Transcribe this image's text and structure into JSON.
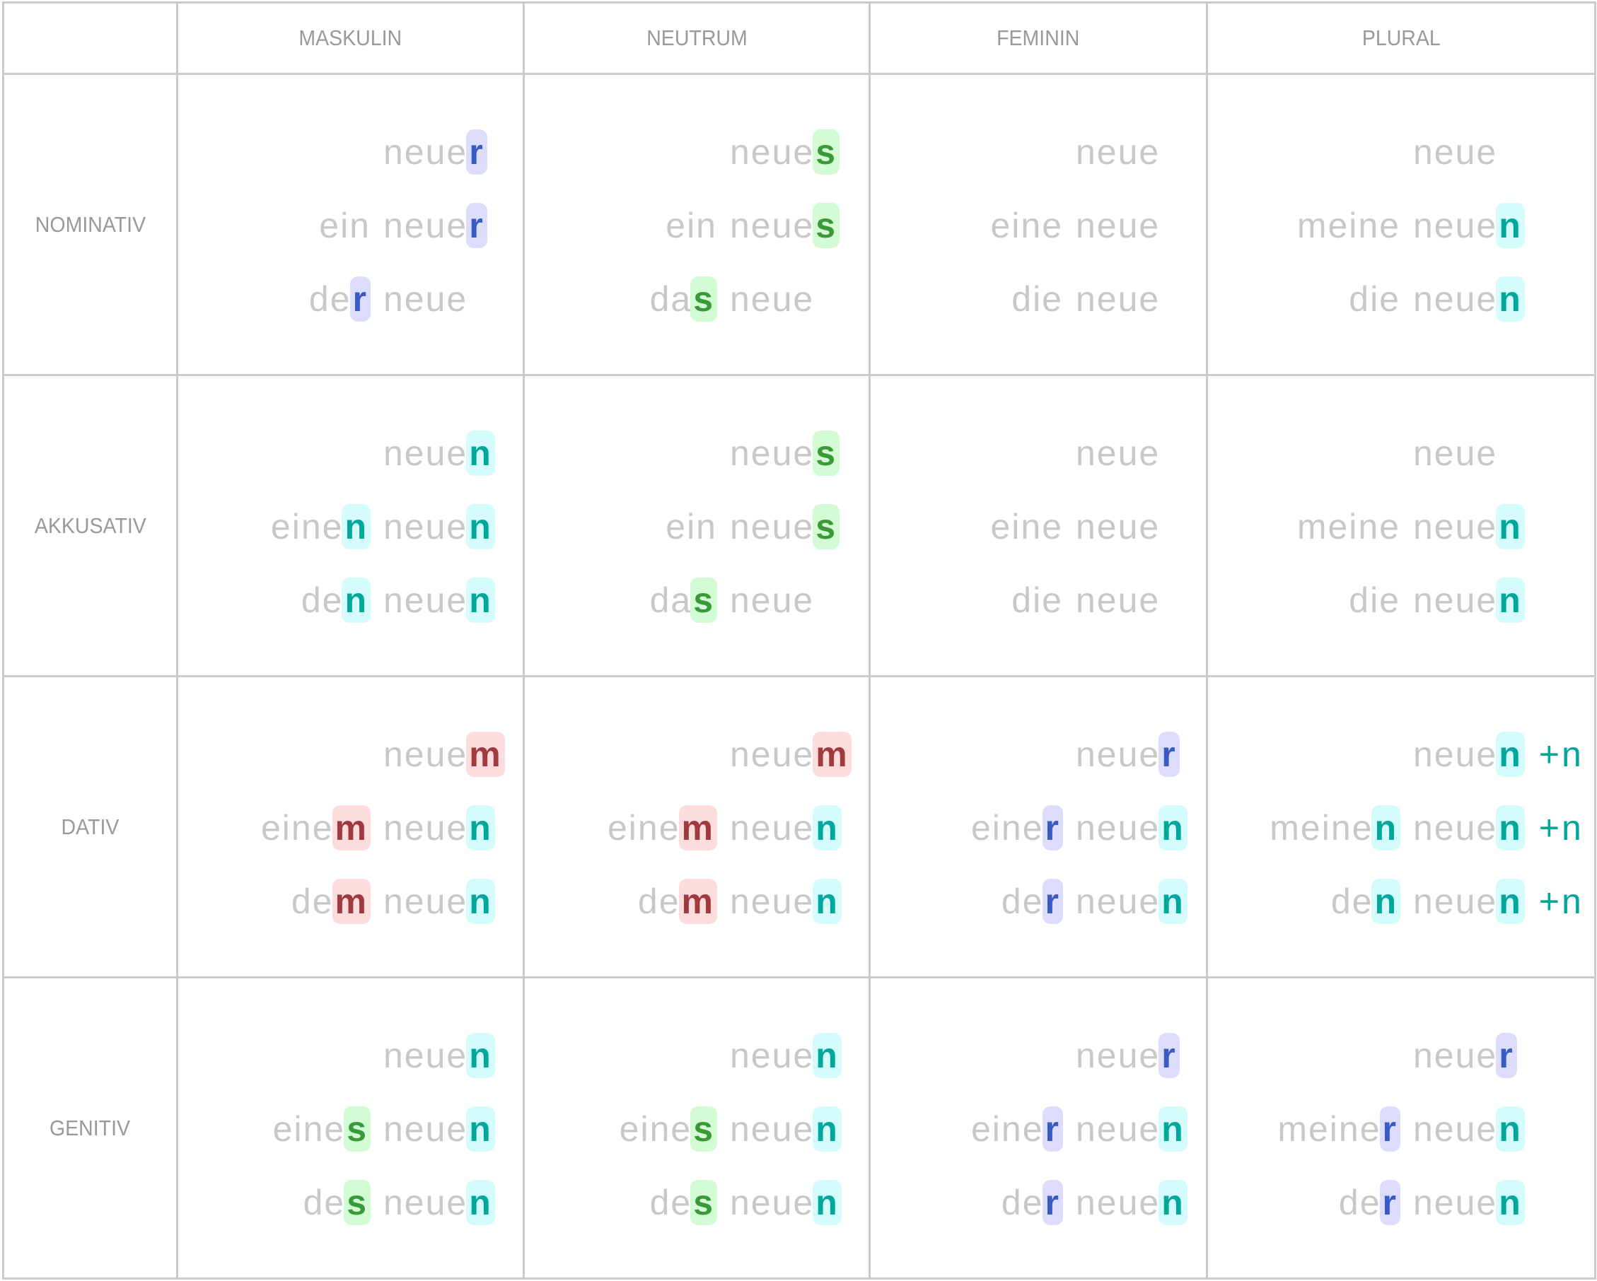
{
  "colors": {
    "r": {
      "fg": "#3b5bc4",
      "bg": "#dcdcfc"
    },
    "s": {
      "fg": "#3a9a3a",
      "bg": "#d4fcd4"
    },
    "n": {
      "fg": "#00a89c",
      "bg": "#d4fcfc"
    },
    "m": {
      "fg": "#a03a40",
      "bg": "#fcdcdc"
    },
    "text": "#c8c8c8",
    "grid": "#cbcbcb"
  },
  "headers": [
    "MASKULIN",
    "NEUTRUM",
    "FEMININ",
    "PLURAL"
  ],
  "rows": [
    {
      "label": "NOMINATIV",
      "cells": [
        {
          "lines": [
            [
              "",
              "",
              "neue",
              "r",
              ""
            ],
            [
              "ein",
              "",
              "neue",
              "r",
              ""
            ],
            [
              "de",
              "r",
              "neue",
              "",
              ""
            ]
          ]
        },
        {
          "lines": [
            [
              "",
              "",
              "neue",
              "s",
              ""
            ],
            [
              "ein",
              "",
              "neue",
              "s",
              ""
            ],
            [
              "da",
              "s",
              "neue",
              "",
              ""
            ]
          ]
        },
        {
          "lines": [
            [
              "",
              "",
              "neue",
              "",
              ""
            ],
            [
              "eine",
              "",
              "neue",
              "",
              ""
            ],
            [
              "die",
              "",
              "neue",
              "",
              ""
            ]
          ]
        },
        {
          "lines": [
            [
              "",
              "",
              "neue",
              "",
              ""
            ],
            [
              "meine",
              "",
              "neue",
              "n",
              ""
            ],
            [
              "die",
              "",
              "neue",
              "n",
              ""
            ]
          ]
        }
      ]
    },
    {
      "label": "AKKUSATIV",
      "cells": [
        {
          "lines": [
            [
              "",
              "",
              "neue",
              "n",
              ""
            ],
            [
              "eine",
              "n",
              "neue",
              "n",
              ""
            ],
            [
              "de",
              "n",
              "neue",
              "n",
              ""
            ]
          ]
        },
        {
          "lines": [
            [
              "",
              "",
              "neue",
              "s",
              ""
            ],
            [
              "ein",
              "",
              "neue",
              "s",
              ""
            ],
            [
              "da",
              "s",
              "neue",
              "",
              ""
            ]
          ]
        },
        {
          "lines": [
            [
              "",
              "",
              "neue",
              "",
              ""
            ],
            [
              "eine",
              "",
              "neue",
              "",
              ""
            ],
            [
              "die",
              "",
              "neue",
              "",
              ""
            ]
          ]
        },
        {
          "lines": [
            [
              "",
              "",
              "neue",
              "",
              ""
            ],
            [
              "meine",
              "",
              "neue",
              "n",
              ""
            ],
            [
              "die",
              "",
              "neue",
              "n",
              ""
            ]
          ]
        }
      ]
    },
    {
      "label": "DATIV",
      "cells": [
        {
          "lines": [
            [
              "",
              "",
              "neue",
              "m",
              ""
            ],
            [
              "eine",
              "m",
              "neue",
              "n",
              ""
            ],
            [
              "de",
              "m",
              "neue",
              "n",
              ""
            ]
          ]
        },
        {
          "lines": [
            [
              "",
              "",
              "neue",
              "m",
              ""
            ],
            [
              "eine",
              "m",
              "neue",
              "n",
              ""
            ],
            [
              "de",
              "m",
              "neue",
              "n",
              ""
            ]
          ]
        },
        {
          "lines": [
            [
              "",
              "",
              "neue",
              "r",
              ""
            ],
            [
              "eine",
              "r",
              "neue",
              "n",
              ""
            ],
            [
              "de",
              "r",
              "neue",
              "n",
              ""
            ]
          ]
        },
        {
          "lines": [
            [
              "",
              "",
              "neue",
              "n",
              "+n"
            ],
            [
              "meine",
              "n",
              "neue",
              "n",
              "+n"
            ],
            [
              "de",
              "n",
              "neue",
              "n",
              "+n"
            ]
          ]
        }
      ]
    },
    {
      "label": "GENITIV",
      "cells": [
        {
          "lines": [
            [
              "",
              "",
              "neue",
              "n",
              ""
            ],
            [
              "eine",
              "s",
              "neue",
              "n",
              ""
            ],
            [
              "de",
              "s",
              "neue",
              "n",
              ""
            ]
          ]
        },
        {
          "lines": [
            [
              "",
              "",
              "neue",
              "n",
              ""
            ],
            [
              "eine",
              "s",
              "neue",
              "n",
              ""
            ],
            [
              "de",
              "s",
              "neue",
              "n",
              ""
            ]
          ]
        },
        {
          "lines": [
            [
              "",
              "",
              "neue",
              "r",
              ""
            ],
            [
              "eine",
              "r",
              "neue",
              "n",
              ""
            ],
            [
              "de",
              "r",
              "neue",
              "n",
              ""
            ]
          ]
        },
        {
          "lines": [
            [
              "",
              "",
              "neue",
              "r",
              ""
            ],
            [
              "meine",
              "r",
              "neue",
              "n",
              ""
            ],
            [
              "de",
              "r",
              "neue",
              "n",
              ""
            ]
          ]
        }
      ]
    }
  ]
}
